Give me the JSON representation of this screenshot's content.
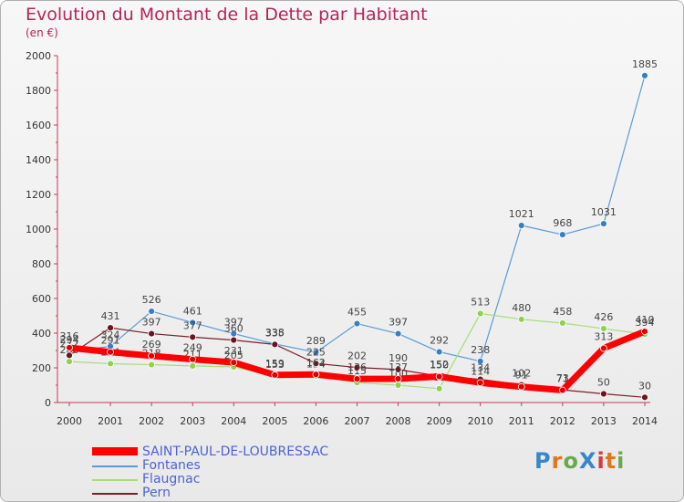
{
  "title": "Evolution du Montant de la Dette par Habitant",
  "subtitle": "(en €)",
  "logo": {
    "text": "ProXiti",
    "colors": [
      "#3a86c8",
      "#e0761f",
      "#6aa84f",
      "#3a86c8",
      "#d13b3b",
      "#e0761f",
      "#6aa84f"
    ]
  },
  "chart_data": {
    "type": "line",
    "categories": [
      "2000",
      "2001",
      "2002",
      "2003",
      "2004",
      "2005",
      "2006",
      "2007",
      "2008",
      "2009",
      "2010",
      "2011",
      "2012",
      "2013",
      "2014"
    ],
    "ylim": [
      0,
      2000
    ],
    "yticks": [
      "0",
      "200",
      "400",
      "600",
      "800",
      "1000",
      "1200",
      "1400",
      "1600",
      "1800",
      "2000"
    ],
    "grid": false,
    "legend_position": "bottom-left",
    "series": [
      {
        "name": "Fontanes",
        "color": "#5b9bd5",
        "marker": "#3a7ec2",
        "width": 1.2,
        "values": [
          294,
          324,
          526,
          461,
          397,
          338,
          289,
          455,
          397,
          292,
          238,
          1021,
          968,
          1031,
          1885
        ]
      },
      {
        "name": "Flaugnac",
        "color": "#a6dc7a",
        "marker": "#8fd14f",
        "width": 1.2,
        "values": [
          236,
          224,
          218,
          211,
          205,
          153,
          154,
          115,
          100,
          80,
          513,
          480,
          458,
          426,
          394
        ]
      },
      {
        "name": "Pern",
        "color": "#7a1f2b",
        "marker": "#6b1320",
        "width": 1.2,
        "values": [
          272,
          431,
          397,
          377,
          360,
          335,
          225,
          202,
          190,
          152,
          134,
          102,
          73,
          50,
          30
        ]
      },
      {
        "name": "SAINT-PAUL-DE-LOUBRESSAC",
        "color": "#ff0000",
        "marker": "#e00000",
        "width": 7,
        "values": [
          316,
          291,
          269,
          249,
          231,
          159,
          162,
          136,
          137,
          150,
          114,
          91,
          71,
          313,
          410
        ]
      }
    ]
  }
}
